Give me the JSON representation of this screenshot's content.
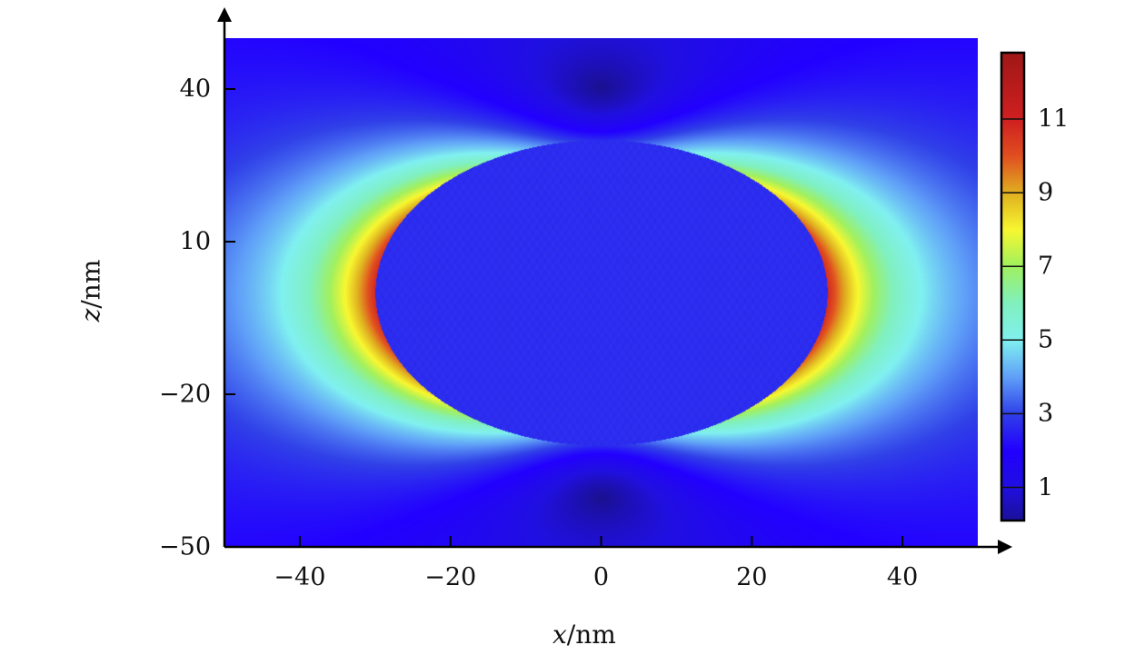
{
  "chart_data": {
    "type": "heatmap",
    "xlabel_var": "x",
    "xlabel_unit": "/nm",
    "ylabel_var": "z",
    "ylabel_unit": "/nm",
    "xlim": [
      -50,
      50
    ],
    "ylim": [
      -50,
      50
    ],
    "xticks": [
      "−40",
      "−20",
      "0",
      "20",
      "40"
    ],
    "xtick_values": [
      -40,
      -20,
      0,
      20,
      40
    ],
    "yticks": [
      "40",
      "10",
      "−20",
      "−50"
    ],
    "ytick_values": [
      40,
      10,
      -20,
      -50
    ],
    "colorbar": {
      "range": [
        0.1,
        12.8
      ],
      "ticks": [
        "1",
        "3",
        "5",
        "7",
        "9",
        "11"
      ],
      "tick_values": [
        1,
        3,
        5,
        7,
        9,
        11
      ],
      "colormap": [
        "#1a1090",
        "#2010e0",
        "#2200ff",
        "#3040e8",
        "#60a0f8",
        "#80f0f0",
        "#80f0c0",
        "#a0f060",
        "#f8f830",
        "#e0b020",
        "#e05020",
        "#d02020",
        "#a01818"
      ]
    },
    "grid": false
  }
}
